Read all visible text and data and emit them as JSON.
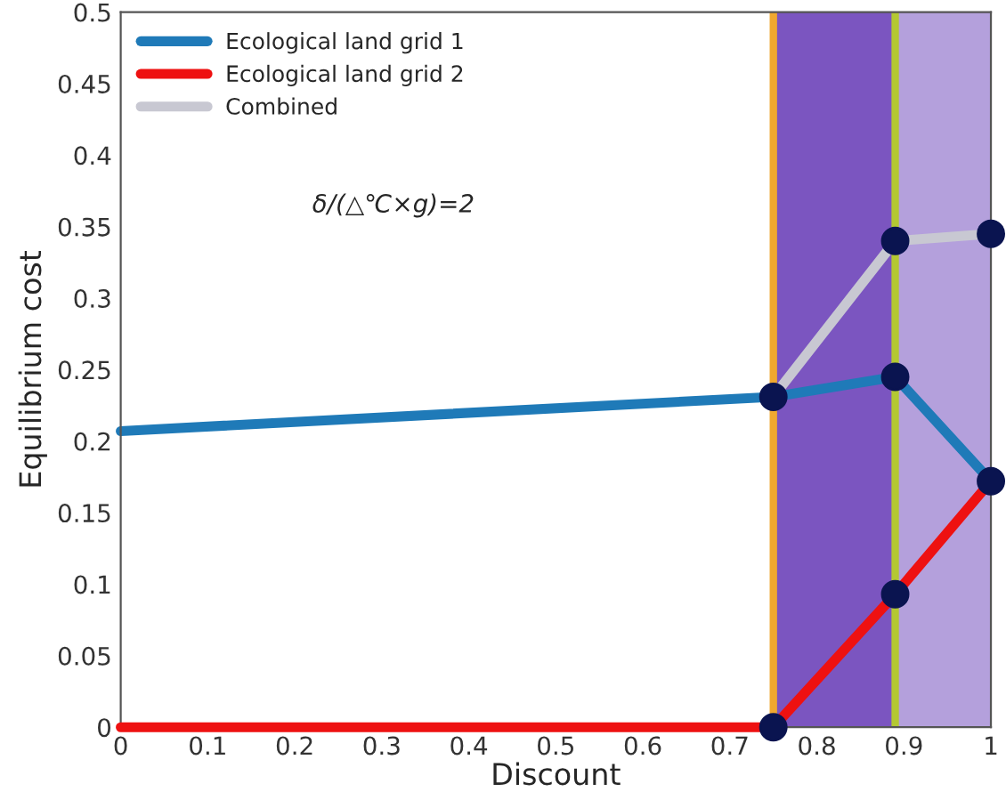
{
  "chart_data": {
    "type": "line",
    "xlabel": "Discount",
    "ylabel": "Equilibrium cost",
    "xlim": [
      0,
      1
    ],
    "ylim": [
      0,
      0.5
    ],
    "xticks": [
      0,
      0.1,
      0.2,
      0.3,
      0.4,
      0.5,
      0.6,
      0.7,
      0.8,
      0.9,
      1
    ],
    "yticks": [
      0,
      0.05,
      0.1,
      0.15,
      0.2,
      0.25,
      0.3,
      0.35,
      0.4,
      0.45,
      0.5
    ],
    "grid": false,
    "legend": "top left",
    "line_style": "solid",
    "annotations": [
      "δ/(△℃×g)=2"
    ],
    "bands": [
      {
        "axis": "x",
        "from": 0.75,
        "to": 0.89,
        "color": "#7b55c0"
      },
      {
        "axis": "x",
        "from": 0.89,
        "to": 1,
        "color": "#b4a0dc"
      }
    ],
    "ref_lines": [
      {
        "axis": "x",
        "value": 0.75,
        "color": "#f0a830"
      },
      {
        "axis": "x",
        "value": 0.89,
        "color": "#b4c832"
      }
    ],
    "series": [
      {
        "name": "Ecological land grid 1",
        "color": "#1f7ab8",
        "x": [
          0,
          0.75,
          0.89,
          1
        ],
        "values": [
          0.207,
          0.231,
          0.245,
          0.172
        ]
      },
      {
        "name": "Ecological land grid 2",
        "color": "#ee1111",
        "x": [
          0,
          0.75,
          0.89,
          1
        ],
        "values": [
          0,
          0,
          0.093,
          0.172
        ]
      },
      {
        "name": "Combined",
        "color": "#c8c8d2",
        "x": [
          0.75,
          0.89,
          1
        ],
        "values": [
          0.231,
          0.34,
          0.345
        ]
      },
      {
        "type": "scatter",
        "marker": "circle",
        "color": "#0a1450",
        "x": [
          0.75,
          0.89,
          1,
          0.75,
          0.89,
          0.89,
          1
        ],
        "values": [
          0.231,
          0.245,
          0.172,
          0,
          0.093,
          0.34,
          0.345
        ]
      }
    ]
  }
}
